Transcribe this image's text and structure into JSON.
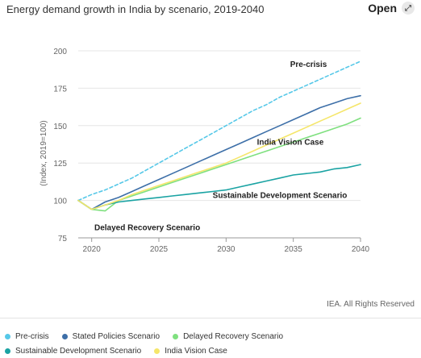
{
  "header": {
    "title": "Energy demand growth in India by scenario, 2019-2040",
    "open_label": "Open"
  },
  "credit": "IEA. All Rights Reserved",
  "chart_data": {
    "type": "line",
    "title": "Energy demand growth in India by scenario, 2019-2040",
    "ylabel": "(Index, 2019=100)",
    "xlabel": "",
    "xlim": [
      2019,
      2040
    ],
    "ylim": [
      75,
      200
    ],
    "x_ticks": [
      2020,
      2025,
      2030,
      2035,
      2040
    ],
    "y_ticks": [
      75,
      100,
      125,
      150,
      175,
      200
    ],
    "grid": "horizontal",
    "legend_position": "bottom",
    "series": [
      {
        "name": "Pre-crisis",
        "color": "#56c8e8",
        "dashed": true,
        "label": "Pre-crisis",
        "x": [
          2019,
          2020,
          2021,
          2022,
          2023,
          2024,
          2025,
          2026,
          2027,
          2028,
          2029,
          2030,
          2031,
          2032,
          2033,
          2034,
          2035,
          2036,
          2037,
          2038,
          2039,
          2040
        ],
        "values": [
          100,
          104,
          107,
          111,
          115,
          120,
          125,
          130,
          135,
          140,
          145,
          150,
          155,
          160,
          164,
          169,
          173,
          177,
          181,
          185,
          189,
          193
        ]
      },
      {
        "name": "Stated Policies Scenario",
        "color": "#3d6fa8",
        "dashed": false,
        "label": "",
        "x": [
          2019,
          2020,
          2021,
          2022,
          2023,
          2024,
          2025,
          2026,
          2027,
          2028,
          2029,
          2030,
          2031,
          2032,
          2033,
          2034,
          2035,
          2036,
          2037,
          2038,
          2039,
          2040
        ],
        "values": [
          100,
          94,
          99,
          102,
          106,
          110,
          114,
          118,
          122,
          126,
          130,
          134,
          138,
          142,
          146,
          150,
          154,
          158,
          162,
          165,
          168,
          170
        ]
      },
      {
        "name": "Delayed Recovery Scenario",
        "color": "#7fe07f",
        "dashed": false,
        "label": "Delayed Recovery Scenario",
        "x": [
          2019,
          2020,
          2021,
          2022,
          2023,
          2024,
          2025,
          2026,
          2027,
          2028,
          2029,
          2030,
          2031,
          2032,
          2033,
          2034,
          2035,
          2036,
          2037,
          2038,
          2039,
          2040
        ],
        "values": [
          100,
          94,
          93,
          100,
          103,
          106,
          109,
          112,
          115,
          118,
          121,
          124,
          127,
          130,
          133,
          136,
          139,
          142,
          145,
          148,
          151,
          155
        ]
      },
      {
        "name": "Sustainable Development Scenario",
        "color": "#1aa3a3",
        "dashed": false,
        "label": "Sustainable Development Scenario",
        "x": [
          2019,
          2020,
          2021,
          2022,
          2023,
          2024,
          2025,
          2026,
          2027,
          2028,
          2029,
          2030,
          2031,
          2032,
          2033,
          2034,
          2035,
          2036,
          2037,
          2038,
          2039,
          2040
        ],
        "values": [
          100,
          94,
          97,
          99,
          100,
          101,
          102,
          103,
          104,
          105,
          106,
          107,
          109,
          111,
          113,
          115,
          117,
          118,
          119,
          121,
          122,
          124
        ]
      },
      {
        "name": "India Vision Case",
        "color": "#f5e66a",
        "dashed": false,
        "label": "India Vision Case",
        "x": [
          2019,
          2020,
          2021,
          2022,
          2023,
          2024,
          2025,
          2026,
          2027,
          2028,
          2029,
          2030,
          2031,
          2032,
          2033,
          2034,
          2035,
          2036,
          2037,
          2038,
          2039,
          2040
        ],
        "values": [
          100,
          94,
          97,
          100,
          104,
          107,
          110,
          113,
          116,
          119,
          122,
          125,
          129,
          133,
          137,
          141,
          145,
          149,
          153,
          157,
          161,
          165
        ]
      }
    ]
  },
  "legend": {
    "rows": [
      [
        {
          "label": "Pre-crisis",
          "color": "#56c8e8"
        },
        {
          "label": "Stated Policies Scenario",
          "color": "#3d6fa8"
        },
        {
          "label": "Delayed Recovery Scenario",
          "color": "#7fe07f"
        }
      ],
      [
        {
          "label": "Sustainable Development Scenario",
          "color": "#1aa3a3"
        },
        {
          "label": "India Vision Case",
          "color": "#f5e66a"
        }
      ]
    ]
  }
}
